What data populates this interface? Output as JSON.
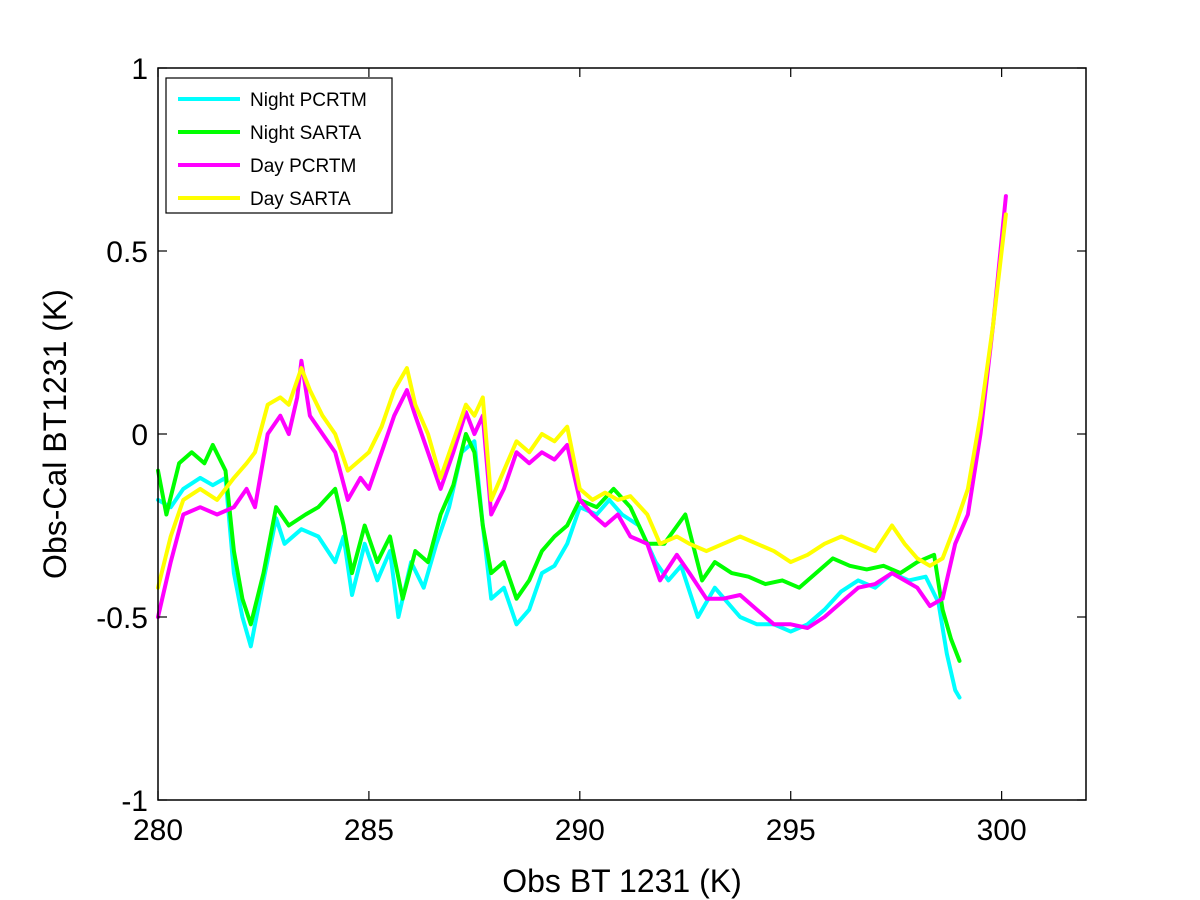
{
  "chart_data": {
    "type": "line",
    "xlabel": "Obs BT 1231 (K)",
    "ylabel": "Obs-Cal BT1231 (K)",
    "xlim": [
      280,
      302
    ],
    "ylim": [
      -1,
      1
    ],
    "xticks": [
      280,
      285,
      290,
      295,
      300
    ],
    "xtick_labels": [
      "280",
      "285",
      "290",
      "295",
      "300"
    ],
    "yticks": [
      -1,
      -0.5,
      0,
      0.5,
      1
    ],
    "ytick_labels": [
      "-1",
      "-0.5",
      "0",
      "0.5",
      "1"
    ],
    "grid": false,
    "legend_position": "top-left",
    "series": [
      {
        "name": "Night PCRTM",
        "color": "#00ffff",
        "points": [
          [
            280.0,
            -0.18
          ],
          [
            280.3,
            -0.2
          ],
          [
            280.6,
            -0.15
          ],
          [
            281.0,
            -0.12
          ],
          [
            281.3,
            -0.14
          ],
          [
            281.6,
            -0.12
          ],
          [
            281.8,
            -0.38
          ],
          [
            282.0,
            -0.5
          ],
          [
            282.2,
            -0.58
          ],
          [
            282.5,
            -0.4
          ],
          [
            282.8,
            -0.23
          ],
          [
            283.0,
            -0.3
          ],
          [
            283.4,
            -0.26
          ],
          [
            283.8,
            -0.28
          ],
          [
            284.2,
            -0.35
          ],
          [
            284.4,
            -0.28
          ],
          [
            284.6,
            -0.44
          ],
          [
            284.9,
            -0.3
          ],
          [
            285.2,
            -0.4
          ],
          [
            285.5,
            -0.32
          ],
          [
            285.7,
            -0.5
          ],
          [
            286.0,
            -0.35
          ],
          [
            286.3,
            -0.42
          ],
          [
            286.6,
            -0.3
          ],
          [
            286.9,
            -0.2
          ],
          [
            287.2,
            -0.05
          ],
          [
            287.5,
            -0.02
          ],
          [
            287.7,
            -0.25
          ],
          [
            287.9,
            -0.45
          ],
          [
            288.2,
            -0.42
          ],
          [
            288.5,
            -0.52
          ],
          [
            288.8,
            -0.48
          ],
          [
            289.1,
            -0.38
          ],
          [
            289.4,
            -0.36
          ],
          [
            289.7,
            -0.3
          ],
          [
            290.0,
            -0.2
          ],
          [
            290.4,
            -0.22
          ],
          [
            290.7,
            -0.18
          ],
          [
            291.0,
            -0.22
          ],
          [
            291.4,
            -0.25
          ],
          [
            291.8,
            -0.35
          ],
          [
            292.1,
            -0.4
          ],
          [
            292.4,
            -0.36
          ],
          [
            292.8,
            -0.5
          ],
          [
            293.2,
            -0.42
          ],
          [
            293.5,
            -0.46
          ],
          [
            293.8,
            -0.5
          ],
          [
            294.2,
            -0.52
          ],
          [
            294.6,
            -0.52
          ],
          [
            295.0,
            -0.54
          ],
          [
            295.4,
            -0.52
          ],
          [
            295.8,
            -0.48
          ],
          [
            296.2,
            -0.43
          ],
          [
            296.6,
            -0.4
          ],
          [
            297.0,
            -0.42
          ],
          [
            297.4,
            -0.38
          ],
          [
            297.8,
            -0.4
          ],
          [
            298.2,
            -0.39
          ],
          [
            298.5,
            -0.46
          ],
          [
            298.7,
            -0.6
          ],
          [
            298.9,
            -0.7
          ],
          [
            299.0,
            -0.72
          ]
        ]
      },
      {
        "name": "Night SARTA",
        "color": "#00ff00",
        "points": [
          [
            280.0,
            -0.1
          ],
          [
            280.2,
            -0.22
          ],
          [
            280.5,
            -0.08
          ],
          [
            280.8,
            -0.05
          ],
          [
            281.1,
            -0.08
          ],
          [
            281.3,
            -0.03
          ],
          [
            281.6,
            -0.1
          ],
          [
            281.8,
            -0.32
          ],
          [
            282.0,
            -0.45
          ],
          [
            282.2,
            -0.52
          ],
          [
            282.5,
            -0.38
          ],
          [
            282.8,
            -0.2
          ],
          [
            283.1,
            -0.25
          ],
          [
            283.5,
            -0.22
          ],
          [
            283.8,
            -0.2
          ],
          [
            284.2,
            -0.15
          ],
          [
            284.4,
            -0.25
          ],
          [
            284.6,
            -0.38
          ],
          [
            284.9,
            -0.25
          ],
          [
            285.2,
            -0.35
          ],
          [
            285.5,
            -0.28
          ],
          [
            285.8,
            -0.45
          ],
          [
            286.1,
            -0.32
          ],
          [
            286.4,
            -0.35
          ],
          [
            286.7,
            -0.22
          ],
          [
            287.0,
            -0.14
          ],
          [
            287.3,
            0.0
          ],
          [
            287.5,
            -0.05
          ],
          [
            287.7,
            -0.25
          ],
          [
            287.9,
            -0.38
          ],
          [
            288.2,
            -0.35
          ],
          [
            288.5,
            -0.45
          ],
          [
            288.8,
            -0.4
          ],
          [
            289.1,
            -0.32
          ],
          [
            289.4,
            -0.28
          ],
          [
            289.7,
            -0.25
          ],
          [
            290.0,
            -0.18
          ],
          [
            290.4,
            -0.2
          ],
          [
            290.8,
            -0.15
          ],
          [
            291.2,
            -0.2
          ],
          [
            291.6,
            -0.3
          ],
          [
            292.0,
            -0.3
          ],
          [
            292.5,
            -0.22
          ],
          [
            292.9,
            -0.4
          ],
          [
            293.2,
            -0.35
          ],
          [
            293.6,
            -0.38
          ],
          [
            294.0,
            -0.39
          ],
          [
            294.4,
            -0.41
          ],
          [
            294.8,
            -0.4
          ],
          [
            295.2,
            -0.42
          ],
          [
            295.6,
            -0.38
          ],
          [
            296.0,
            -0.34
          ],
          [
            296.4,
            -0.36
          ],
          [
            296.8,
            -0.37
          ],
          [
            297.2,
            -0.36
          ],
          [
            297.6,
            -0.38
          ],
          [
            298.0,
            -0.35
          ],
          [
            298.4,
            -0.33
          ],
          [
            298.6,
            -0.48
          ],
          [
            298.8,
            -0.56
          ],
          [
            299.0,
            -0.62
          ]
        ]
      },
      {
        "name": "Day PCRTM",
        "color": "#ff00ff",
        "points": [
          [
            280.0,
            -0.5
          ],
          [
            280.3,
            -0.35
          ],
          [
            280.6,
            -0.22
          ],
          [
            281.0,
            -0.2
          ],
          [
            281.4,
            -0.22
          ],
          [
            281.8,
            -0.2
          ],
          [
            282.1,
            -0.15
          ],
          [
            282.3,
            -0.2
          ],
          [
            282.6,
            0.0
          ],
          [
            282.9,
            0.05
          ],
          [
            283.1,
            0.0
          ],
          [
            283.3,
            0.1
          ],
          [
            283.4,
            0.2
          ],
          [
            283.6,
            0.05
          ],
          [
            283.9,
            0.0
          ],
          [
            284.2,
            -0.05
          ],
          [
            284.5,
            -0.18
          ],
          [
            284.8,
            -0.12
          ],
          [
            285.0,
            -0.15
          ],
          [
            285.3,
            -0.05
          ],
          [
            285.6,
            0.05
          ],
          [
            285.9,
            0.12
          ],
          [
            286.1,
            0.05
          ],
          [
            286.4,
            -0.05
          ],
          [
            286.7,
            -0.15
          ],
          [
            287.0,
            -0.05
          ],
          [
            287.3,
            0.06
          ],
          [
            287.5,
            0.0
          ],
          [
            287.7,
            0.05
          ],
          [
            287.9,
            -0.22
          ],
          [
            288.2,
            -0.15
          ],
          [
            288.5,
            -0.05
          ],
          [
            288.8,
            -0.08
          ],
          [
            289.1,
            -0.05
          ],
          [
            289.4,
            -0.07
          ],
          [
            289.7,
            -0.03
          ],
          [
            290.0,
            -0.18
          ],
          [
            290.3,
            -0.22
          ],
          [
            290.6,
            -0.25
          ],
          [
            290.9,
            -0.22
          ],
          [
            291.2,
            -0.28
          ],
          [
            291.6,
            -0.3
          ],
          [
            291.9,
            -0.4
          ],
          [
            292.3,
            -0.33
          ],
          [
            292.6,
            -0.38
          ],
          [
            293.0,
            -0.45
          ],
          [
            293.4,
            -0.45
          ],
          [
            293.8,
            -0.44
          ],
          [
            294.2,
            -0.48
          ],
          [
            294.6,
            -0.52
          ],
          [
            295.0,
            -0.52
          ],
          [
            295.4,
            -0.53
          ],
          [
            295.8,
            -0.5
          ],
          [
            296.2,
            -0.46
          ],
          [
            296.6,
            -0.42
          ],
          [
            297.0,
            -0.41
          ],
          [
            297.4,
            -0.38
          ],
          [
            297.7,
            -0.4
          ],
          [
            298.0,
            -0.42
          ],
          [
            298.3,
            -0.47
          ],
          [
            298.6,
            -0.45
          ],
          [
            298.9,
            -0.3
          ],
          [
            299.2,
            -0.22
          ],
          [
            299.5,
            0.0
          ],
          [
            299.8,
            0.3
          ],
          [
            300.1,
            0.65
          ]
        ]
      },
      {
        "name": "Day SARTA",
        "color": "#ffff00",
        "points": [
          [
            280.0,
            -0.42
          ],
          [
            280.3,
            -0.28
          ],
          [
            280.6,
            -0.18
          ],
          [
            281.0,
            -0.15
          ],
          [
            281.4,
            -0.18
          ],
          [
            281.8,
            -0.12
          ],
          [
            282.1,
            -0.08
          ],
          [
            282.3,
            -0.05
          ],
          [
            282.6,
            0.08
          ],
          [
            282.9,
            0.1
          ],
          [
            283.1,
            0.08
          ],
          [
            283.4,
            0.18
          ],
          [
            283.6,
            0.12
          ],
          [
            283.9,
            0.05
          ],
          [
            284.2,
            0.0
          ],
          [
            284.5,
            -0.1
          ],
          [
            284.8,
            -0.07
          ],
          [
            285.0,
            -0.05
          ],
          [
            285.3,
            0.02
          ],
          [
            285.6,
            0.12
          ],
          [
            285.9,
            0.18
          ],
          [
            286.1,
            0.08
          ],
          [
            286.4,
            0.0
          ],
          [
            286.7,
            -0.12
          ],
          [
            287.0,
            -0.02
          ],
          [
            287.3,
            0.08
          ],
          [
            287.5,
            0.05
          ],
          [
            287.7,
            0.1
          ],
          [
            287.9,
            -0.18
          ],
          [
            288.2,
            -0.1
          ],
          [
            288.5,
            -0.02
          ],
          [
            288.8,
            -0.05
          ],
          [
            289.1,
            0.0
          ],
          [
            289.4,
            -0.02
          ],
          [
            289.7,
            0.02
          ],
          [
            290.0,
            -0.15
          ],
          [
            290.3,
            -0.18
          ],
          [
            290.6,
            -0.16
          ],
          [
            290.9,
            -0.18
          ],
          [
            291.2,
            -0.17
          ],
          [
            291.6,
            -0.22
          ],
          [
            291.9,
            -0.3
          ],
          [
            292.3,
            -0.28
          ],
          [
            292.6,
            -0.3
          ],
          [
            293.0,
            -0.32
          ],
          [
            293.4,
            -0.3
          ],
          [
            293.8,
            -0.28
          ],
          [
            294.2,
            -0.3
          ],
          [
            294.6,
            -0.32
          ],
          [
            295.0,
            -0.35
          ],
          [
            295.4,
            -0.33
          ],
          [
            295.8,
            -0.3
          ],
          [
            296.2,
            -0.28
          ],
          [
            296.6,
            -0.3
          ],
          [
            297.0,
            -0.32
          ],
          [
            297.4,
            -0.25
          ],
          [
            297.7,
            -0.3
          ],
          [
            298.0,
            -0.34
          ],
          [
            298.3,
            -0.36
          ],
          [
            298.6,
            -0.34
          ],
          [
            298.9,
            -0.25
          ],
          [
            299.2,
            -0.15
          ],
          [
            299.5,
            0.05
          ],
          [
            299.8,
            0.3
          ],
          [
            300.1,
            0.6
          ]
        ]
      }
    ]
  }
}
